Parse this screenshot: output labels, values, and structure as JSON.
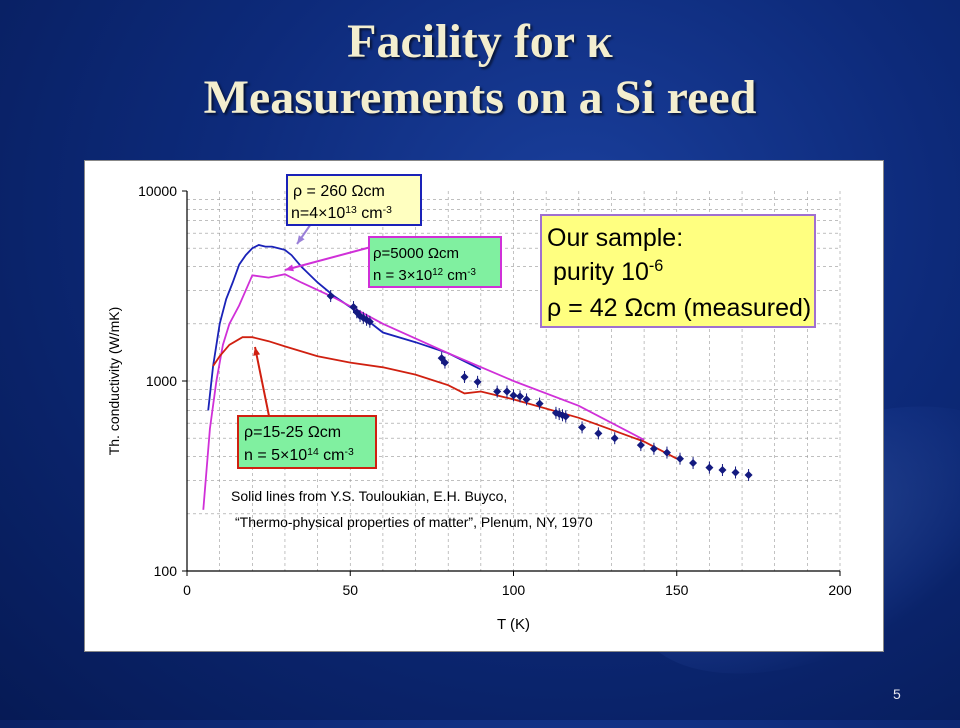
{
  "slide": {
    "title_line1": "Facility for κ",
    "title_line2": "Measurements on a Si reed",
    "page_number": "5"
  },
  "colors": {
    "background": "#0d2a7a",
    "title": "#f3eecf",
    "blue_curve": "#1a22b8",
    "magenta_curve": "#d030d8",
    "red_curve": "#d02010",
    "data_points": "#141a80",
    "box_blue_fill": "#ffffc0",
    "box_magenta_fill": "#80f0a0",
    "box_red_fill": "#80f0a0",
    "box_sample_fill": "#ffff80"
  },
  "chart_data": {
    "type": "line",
    "xlabel": "T (K)",
    "ylabel": "Th. conductivity (W/mK)",
    "xlim": [
      0,
      200
    ],
    "ylim": [
      100,
      10000
    ],
    "yscale": "log",
    "x_ticks": [
      "0",
      "50",
      "100",
      "150",
      "200"
    ],
    "y_ticks": [
      "100",
      "1000",
      "10000"
    ],
    "grid": true,
    "series": [
      {
        "color": "blue",
        "x": [
          6.5,
          8,
          10,
          12,
          14,
          16,
          18,
          20,
          22,
          24,
          26,
          28,
          30,
          32,
          35,
          40,
          45,
          50,
          60,
          70,
          80,
          90
        ],
        "y": [
          700,
          1200,
          2000,
          2700,
          3300,
          4100,
          4600,
          5000,
          5200,
          5100,
          5100,
          5000,
          4900,
          4600,
          4000,
          3300,
          2800,
          2450,
          1800,
          1600,
          1400,
          1150
        ]
      },
      {
        "color": "magenta",
        "x": [
          5,
          7,
          9,
          11,
          13,
          16,
          20,
          25,
          30,
          35,
          45,
          60,
          80,
          100,
          120,
          140
        ],
        "y": [
          210,
          560,
          1000,
          1550,
          2000,
          2500,
          3600,
          3500,
          3650,
          3300,
          2750,
          2000,
          1400,
          1000,
          740,
          490
        ]
      },
      {
        "color": "red",
        "x": [
          8,
          10,
          13,
          17,
          20,
          25,
          30,
          40,
          50,
          60,
          70,
          80,
          85,
          90,
          100,
          120,
          140,
          150
        ],
        "y": [
          1200,
          1350,
          1550,
          1700,
          1700,
          1620,
          1520,
          1350,
          1250,
          1180,
          1080,
          950,
          860,
          880,
          800,
          640,
          480,
          390
        ]
      },
      {
        "color": "data-points",
        "x": [
          44,
          51,
          52,
          53,
          54,
          55,
          56,
          78,
          79,
          85,
          89,
          95,
          98,
          100,
          102,
          104,
          108,
          113,
          114,
          115,
          116,
          121,
          126,
          131,
          139,
          143,
          147,
          151,
          155,
          160,
          164,
          168,
          172
        ],
        "y": [
          2800,
          2450,
          2300,
          2200,
          2150,
          2100,
          2050,
          1320,
          1250,
          1050,
          990,
          880,
          880,
          840,
          830,
          800,
          760,
          680,
          670,
          660,
          650,
          570,
          530,
          500,
          460,
          440,
          420,
          390,
          370,
          350,
          340,
          330,
          320
        ]
      }
    ],
    "annotations": {
      "blue_rho": "ρ = 260 Ωcm",
      "blue_n": "n=4×10",
      "blue_n_exp": "13",
      "blue_n_unit": " cm",
      "blue_n_unit_exp": "-3",
      "magenta_rho": "ρ=5000 Ωcm",
      "magenta_n": "n = 3×10",
      "magenta_n_exp": "12",
      "magenta_n_unit": " cm",
      "magenta_n_unit_exp": "-3",
      "red_rho": "ρ=15-25 Ωcm",
      "red_n": "n = 5×10",
      "red_n_exp": "14",
      "red_n_unit": " cm",
      "red_n_unit_exp": "-3",
      "sample_line1": "Our sample:",
      "sample_line2": "purity 10",
      "sample_line2_exp": "-6",
      "sample_line3": "ρ = 42 Ωcm (measured)",
      "source_line1": "Solid lines from Y.S. Touloukian, E.H. Buyco,",
      "source_line2": "“Thermo-physical properties of matter”, Plenum, NY, 1970"
    }
  }
}
